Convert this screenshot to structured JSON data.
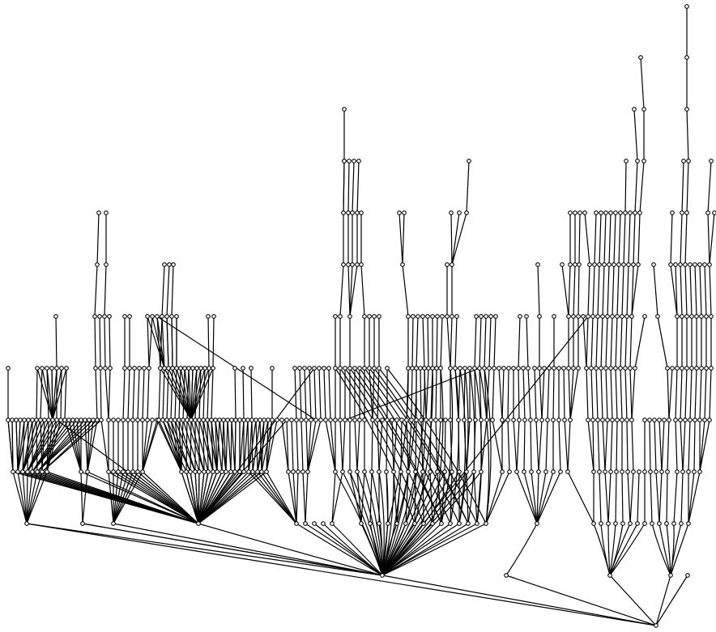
{
  "diagram": {
    "kind": "layered directed graph",
    "labels_shown": false,
    "node_style": "small hollow circle",
    "edge_style": "black curved lines",
    "colors": {
      "background": "#ffffff",
      "stroke": "#000000",
      "node_fill": "#ffffff"
    }
  }
}
